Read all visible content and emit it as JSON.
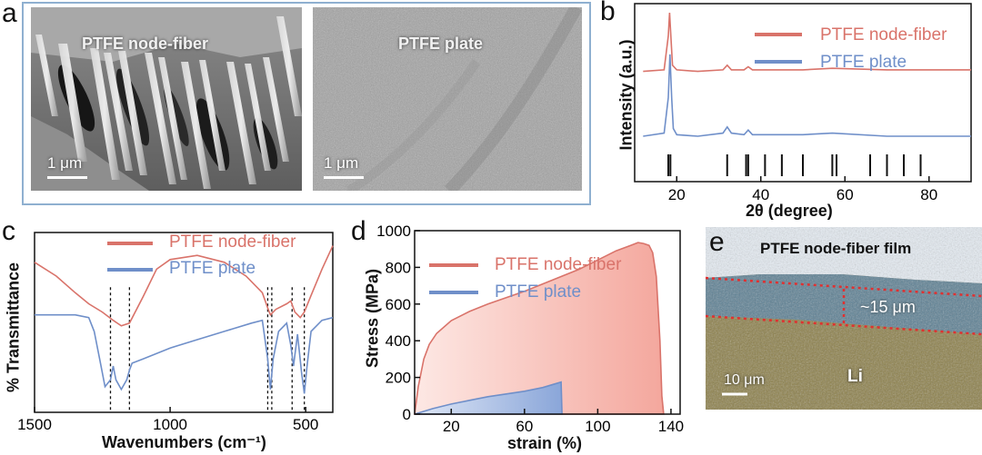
{
  "panels": {
    "a": {
      "label": "a",
      "left_image": {
        "title": "PTFE node-fiber",
        "scale": "1 μm"
      },
      "right_image": {
        "title": "PTFE plate",
        "scale": "1 μm"
      }
    },
    "b": {
      "label": "b",
      "xlabel": "2θ (degree)",
      "ylabel": "Intensity (a.u.)",
      "xticks": [
        "20",
        "40",
        "60",
        "80"
      ],
      "legend": [
        "PTFE node-fiber",
        "PTFE plate"
      ]
    },
    "c": {
      "label": "c",
      "xlabel": "Wavenumbers (cm⁻¹)",
      "ylabel": "% Transmittance",
      "xticks": [
        "1500",
        "1000",
        "500"
      ],
      "legend": [
        "PTFE node-fiber",
        "PTFE plate"
      ]
    },
    "d": {
      "label": "d",
      "xlabel": "strain (%)",
      "ylabel": "Stress (MPa)",
      "xticks": [
        "20",
        "60",
        "100",
        "140"
      ],
      "yticks": [
        "0",
        "200",
        "400",
        "600",
        "800",
        "1000"
      ],
      "legend": [
        "PTFE node-fiber",
        "PTFE plate"
      ]
    },
    "e": {
      "label": "e",
      "title": "PTFE node-fiber film",
      "thickness": "~15 μm",
      "scale": "10 μm",
      "li_label": "Li"
    }
  },
  "colors": {
    "node_fiber": "#d9736a",
    "plate": "#6f8fc9",
    "text": "#111111"
  },
  "chart_data": [
    {
      "type": "line",
      "panel": "b",
      "title": "",
      "xlabel": "2θ (degree)",
      "ylabel": "Intensity (a.u.)",
      "xlim": [
        10,
        90
      ],
      "series": [
        {
          "name": "PTFE node-fiber",
          "x": [
            12,
            17,
            18,
            18.3,
            18.6,
            19,
            20,
            25,
            31,
            32,
            33,
            36,
            37,
            38,
            50,
            57,
            70,
            90
          ],
          "y": [
            0.62,
            0.63,
            0.85,
            1.0,
            0.85,
            0.66,
            0.63,
            0.62,
            0.63,
            0.66,
            0.63,
            0.63,
            0.65,
            0.63,
            0.63,
            0.64,
            0.63,
            0.63
          ]
        },
        {
          "name": "PTFE plate",
          "x": [
            12,
            17,
            18,
            18.4,
            18.8,
            19.2,
            20,
            25,
            31,
            32,
            33,
            36,
            37,
            38,
            50,
            57,
            70,
            90
          ],
          "y": [
            0.2,
            0.22,
            0.45,
            0.73,
            0.45,
            0.25,
            0.21,
            0.2,
            0.22,
            0.26,
            0.22,
            0.21,
            0.24,
            0.21,
            0.21,
            0.22,
            0.2,
            0.2
          ]
        }
      ],
      "reference_ticks_x": [
        18,
        18.5,
        32,
        36.5,
        37,
        41,
        45,
        50,
        57,
        58,
        66,
        70,
        74,
        78
      ]
    },
    {
      "type": "line",
      "panel": "c",
      "title": "",
      "xlabel": "Wavenumbers (cm⁻¹)",
      "ylabel": "% Transmittance",
      "xlim": [
        1500,
        400
      ],
      "series": [
        {
          "name": "PTFE node-fiber",
          "x": [
            1500,
            1420,
            1350,
            1300,
            1250,
            1210,
            1180,
            1150,
            1100,
            1050,
            1000,
            900,
            800,
            720,
            660,
            640,
            630,
            610,
            570,
            555,
            540,
            520,
            505,
            480,
            440,
            400
          ],
          "y": [
            0.8,
            0.7,
            0.58,
            0.5,
            0.44,
            0.38,
            0.34,
            0.36,
            0.55,
            0.75,
            0.82,
            0.85,
            0.8,
            0.7,
            0.58,
            0.47,
            0.42,
            0.46,
            0.5,
            0.52,
            0.44,
            0.4,
            0.44,
            0.56,
            0.75,
            0.92
          ]
        },
        {
          "name": "PTFE plate",
          "x": [
            1500,
            1420,
            1350,
            1300,
            1280,
            1260,
            1240,
            1220,
            1210,
            1200,
            1180,
            1160,
            1150,
            1140,
            1100,
            1000,
            900,
            800,
            700,
            660,
            640,
            630,
            620,
            600,
            570,
            555,
            545,
            530,
            515,
            505,
            495,
            480,
            440,
            400
          ],
          "y": [
            0.42,
            0.42,
            0.42,
            0.4,
            0.3,
            0.1,
            -0.1,
            -0.05,
            0.05,
            -0.05,
            -0.12,
            -0.05,
            0.02,
            0.07,
            0.1,
            0.18,
            0.24,
            0.3,
            0.36,
            0.38,
            0.1,
            -0.12,
            0.1,
            0.3,
            0.36,
            0.2,
            0.05,
            0.28,
            0.0,
            -0.15,
            0.05,
            0.3,
            0.38,
            0.4
          ]
        }
      ],
      "marker_lines_x": [
        1220,
        1150,
        640,
        625,
        550,
        505
      ]
    },
    {
      "type": "area",
      "panel": "d",
      "title": "",
      "xlabel": "strain (%)",
      "ylabel": "Stress (MPa)",
      "xlim": [
        0,
        145
      ],
      "ylim": [
        0,
        1000
      ],
      "series": [
        {
          "name": "PTFE node-fiber",
          "x": [
            0,
            2,
            5,
            8,
            12,
            20,
            30,
            40,
            50,
            60,
            70,
            80,
            90,
            100,
            110,
            118,
            122,
            125,
            128,
            130,
            132,
            134,
            135,
            136
          ],
          "y": [
            0,
            150,
            300,
            380,
            440,
            510,
            560,
            600,
            635,
            670,
            710,
            750,
            790,
            840,
            890,
            920,
            935,
            930,
            920,
            880,
            750,
            400,
            100,
            0
          ]
        },
        {
          "name": "PTFE plate",
          "x": [
            0,
            10,
            20,
            30,
            40,
            50,
            60,
            70,
            75,
            80,
            80.5
          ],
          "y": [
            0,
            30,
            55,
            75,
            95,
            110,
            125,
            145,
            160,
            175,
            0
          ]
        }
      ]
    }
  ]
}
